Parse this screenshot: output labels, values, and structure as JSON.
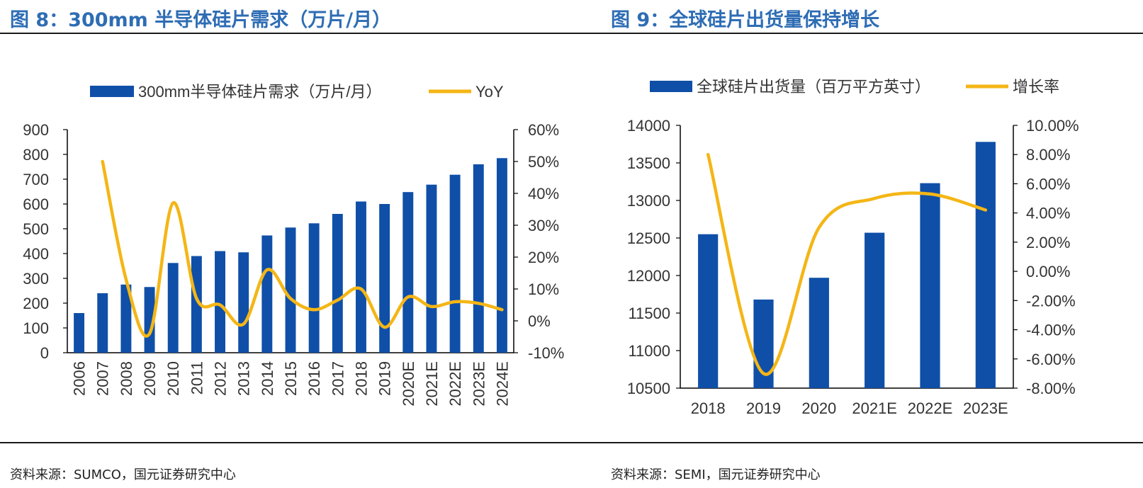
{
  "left": {
    "title": "图 8：300mm 半导体硅片需求（万片/月）",
    "source": "资料来源：SUMCO，国元证券研究中心"
  },
  "right": {
    "title": "图 9：全球硅片出货量保持增长",
    "source": "资料来源：SEMI，国元证券研究中心"
  },
  "colors": {
    "bar": "#0f4fa8",
    "line": "#f4b616",
    "title": "#2e6db4"
  },
  "chart_data": [
    {
      "type": "bar",
      "categories": [
        "2006",
        "2007",
        "2008",
        "2009",
        "2010",
        "2011",
        "2012",
        "2013",
        "2014",
        "2015",
        "2016",
        "2017",
        "2018",
        "2019",
        "2020E",
        "2021E",
        "2022E",
        "2023E",
        "2024E"
      ],
      "series": [
        {
          "name": "300mm半导体硅片需求（万片/月）",
          "type": "bar",
          "axis": "left",
          "values": [
            160,
            240,
            275,
            265,
            362,
            390,
            410,
            405,
            473,
            505,
            522,
            560,
            610,
            600,
            648,
            678,
            718,
            760,
            785
          ]
        },
        {
          "name": "YoY",
          "type": "line",
          "axis": "right",
          "smooth": true,
          "values": [
            null,
            50,
            13,
            -4,
            37,
            7,
            5,
            -1,
            16,
            7,
            3.5,
            6.5,
            10,
            -2,
            7.5,
            4.5,
            6,
            5.5,
            3.5
          ]
        }
      ],
      "y_left": {
        "lim": [
          0,
          900
        ],
        "ticks": [
          "0",
          "100",
          "200",
          "300",
          "400",
          "500",
          "600",
          "700",
          "800",
          "900"
        ]
      },
      "y_right": {
        "lim": [
          -10,
          60
        ],
        "ticks": [
          "-10%",
          "0%",
          "10%",
          "20%",
          "30%",
          "40%",
          "50%",
          "60%"
        ]
      },
      "legend": "top"
    },
    {
      "type": "bar",
      "categories": [
        "2018",
        "2019",
        "2020",
        "2021E",
        "2022E",
        "2023E"
      ],
      "series": [
        {
          "name": "全球硅片出货量（百万平方英寸）",
          "type": "bar",
          "axis": "left",
          "values": [
            12550,
            11680,
            11970,
            12570,
            13230,
            13780
          ]
        },
        {
          "name": "增长率",
          "type": "line",
          "axis": "right",
          "smooth": true,
          "values": [
            8.0,
            -7.0,
            3.0,
            5.0,
            5.3,
            4.2
          ]
        }
      ],
      "y_left": {
        "lim": [
          10500,
          14000
        ],
        "ticks": [
          "10500",
          "11000",
          "11500",
          "12000",
          "12500",
          "13000",
          "13500",
          "14000"
        ]
      },
      "y_right": {
        "lim": [
          -8,
          10
        ],
        "ticks": [
          "-8.00%",
          "-6.00%",
          "-4.00%",
          "-2.00%",
          "0.00%",
          "2.00%",
          "4.00%",
          "6.00%",
          "8.00%",
          "10.00%"
        ]
      },
      "legend": "top"
    }
  ]
}
